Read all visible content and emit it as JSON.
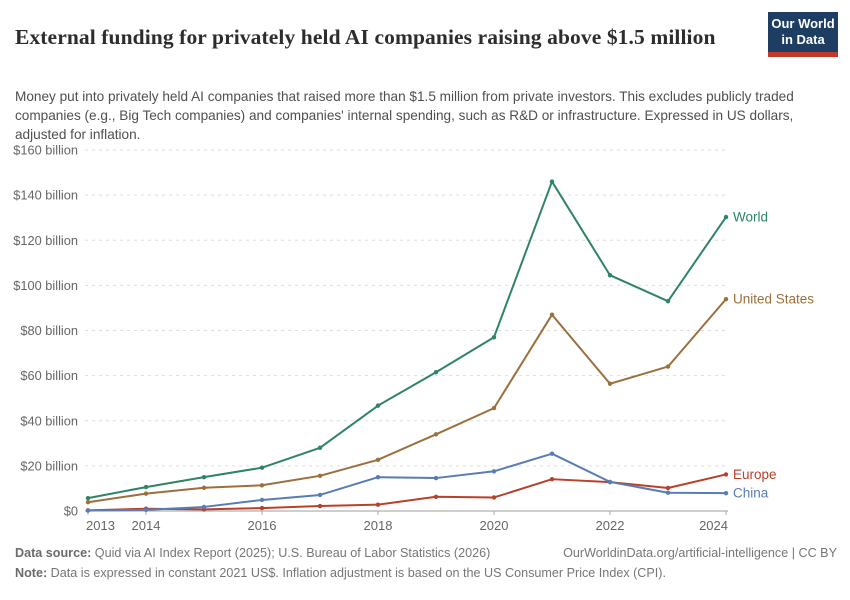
{
  "header": {
    "title": "External funding for privately held AI companies raising above $1.5 million",
    "subtitle": "Money put into privately held AI companies that raised more than $1.5 million from private investors. This excludes publicly traded companies (e.g., Big Tech companies) and companies' internal spending, such as R&D or infrastructure. Expressed in US dollars, adjusted for inflation.",
    "logo": {
      "line1": "Our World",
      "line2": "in Data",
      "bg_color": "#1d3d63",
      "accent_color": "#c0392b"
    }
  },
  "chart_data": {
    "type": "line",
    "title": "External funding for privately held AI companies raising above $1.5 million",
    "x": [
      2013,
      2014,
      2015,
      2016,
      2017,
      2018,
      2019,
      2020,
      2021,
      2022,
      2023,
      2024
    ],
    "series": [
      {
        "name": "World",
        "color": "#2e8465",
        "values": [
          5.7,
          10.6,
          15.0,
          19.2,
          28.0,
          46.7,
          61.5,
          77.0,
          146.0,
          104.5,
          93.0,
          130.3
        ]
      },
      {
        "name": "United States",
        "color": "#9c6f3c",
        "values": [
          3.9,
          7.7,
          10.3,
          11.4,
          15.6,
          22.7,
          34.0,
          45.6,
          87.0,
          56.4,
          64.0,
          93.9
        ]
      },
      {
        "name": "Europe",
        "color": "#b9402a",
        "values": [
          0.3,
          1.0,
          0.7,
          1.3,
          2.2,
          2.8,
          6.3,
          6.0,
          14.1,
          12.8,
          10.2,
          16.2
        ]
      },
      {
        "name": "China",
        "color": "#587cb4",
        "values": [
          0.2,
          0.5,
          1.8,
          4.9,
          7.1,
          15.0,
          14.6,
          17.6,
          25.4,
          12.9,
          8.1,
          7.9
        ]
      }
    ],
    "xlim": [
      2013,
      2024
    ],
    "ylim": [
      0,
      160
    ],
    "yticks": [
      0,
      20,
      40,
      60,
      80,
      100,
      120,
      140,
      160
    ],
    "ytick_labels": [
      "$0",
      "$20 billion",
      "$40 billion",
      "$60 billion",
      "$80 billion",
      "$100 billion",
      "$120 billion",
      "$140 billion",
      "$160 billion"
    ],
    "xticks": [
      2013,
      2014,
      2016,
      2018,
      2020,
      2022,
      2024
    ],
    "xtick_labels": [
      "2013",
      "2014",
      "2016",
      "2018",
      "2020",
      "2022",
      "2024"
    ],
    "grid": "horizontal-dashed",
    "legend_position": "right-end-labels",
    "axis_label_color": "#666666",
    "gridline_color": "#dddddd",
    "baseline_color": "#9e9e9e"
  },
  "footer": {
    "source_label": "Data source:",
    "source_text": " Quid via AI Index Report (2025); U.S. Bureau of Labor Statistics (2026)",
    "attribution": "OurWorldinData.org/artificial-intelligence | CC BY",
    "note_label": "Note:",
    "note_text": " Data is expressed in constant 2021 US$. Inflation adjustment is based on the US Consumer Price Index (CPI)."
  }
}
